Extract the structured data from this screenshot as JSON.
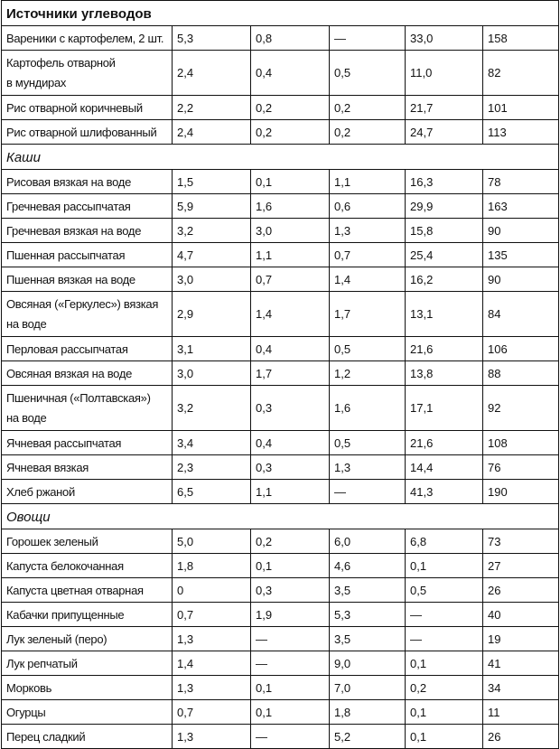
{
  "title": "Источники углеводов",
  "rows": [
    {
      "name": "Вареники с картофелем, 2 шт.",
      "c1": "5,3",
      "c2": "0,8",
      "c3": "—",
      "c4": "33,0",
      "c5": "158"
    },
    {
      "name": "Картофель отварной\nв мундирах",
      "c1": "2,4",
      "c2": "0,4",
      "c3": "0,5",
      "c4": "11,0",
      "c5": "82"
    },
    {
      "name": "Рис отварной коричневый",
      "c1": "2,2",
      "c2": "0,2",
      "c3": "0,2",
      "c4": "21,7",
      "c5": "101"
    },
    {
      "name": "Рис отварной шлифованный",
      "c1": "2,4",
      "c2": "0,2",
      "c3": "0,2",
      "c4": "24,7",
      "c5": "113"
    }
  ],
  "section_kashi": "Каши",
  "rows_kashi": [
    {
      "name": "Рисовая вязкая на воде",
      "c1": "1,5",
      "c2": "0,1",
      "c3": "1,1",
      "c4": "16,3",
      "c5": "78"
    },
    {
      "name": "Гречневая рассыпчатая",
      "c1": "5,9",
      "c2": "1,6",
      "c3": "0,6",
      "c4": "29,9",
      "c5": "163"
    },
    {
      "name": "Гречневая вязкая на воде",
      "c1": "3,2",
      "c2": "3,0",
      "c3": "1,3",
      "c4": "15,8",
      "c5": "90"
    },
    {
      "name": "Пшенная рассыпчатая",
      "c1": "4,7",
      "c2": "1,1",
      "c3": "0,7",
      "c4": "25,4",
      "c5": "135"
    },
    {
      "name": "Пшенная вязкая на воде",
      "c1": "3,0",
      "c2": "0,7",
      "c3": "1,4",
      "c4": "16,2",
      "c5": "90"
    },
    {
      "name": "Овсяная («Геркулес») вязкая\nна воде",
      "c1": "2,9",
      "c2": "1,4",
      "c3": "1,7",
      "c4": "13,1",
      "c5": "84"
    },
    {
      "name": "Перловая рассыпчатая",
      "c1": "3,1",
      "c2": "0,4",
      "c3": "0,5",
      "c4": "21,6",
      "c5": "106"
    },
    {
      "name": "Овсяная вязкая на воде",
      "c1": "3,0",
      "c2": "1,7",
      "c3": "1,2",
      "c4": "13,8",
      "c5": "88"
    },
    {
      "name": "Пшеничная («Полтавская»)\nна воде",
      "c1": "3,2",
      "c2": "0,3",
      "c3": "1,6",
      "c4": "17,1",
      "c5": "92"
    },
    {
      "name": "Ячневая рассыпчатая",
      "c1": "3,4",
      "c2": "0,4",
      "c3": "0,5",
      "c4": "21,6",
      "c5": "108"
    },
    {
      "name": "Ячневая вязкая",
      "c1": "2,3",
      "c2": "0,3",
      "c3": "1,3",
      "c4": "14,4",
      "c5": "76"
    },
    {
      "name": "Хлеб ржаной",
      "c1": "6,5",
      "c2": "1,1",
      "c3": "—",
      "c4": "41,3",
      "c5": "190"
    }
  ],
  "section_ovoshi": "Овощи",
  "rows_ovoshi": [
    {
      "name": "Горошек зеленый",
      "c1": "5,0",
      "c2": "0,2",
      "c3": "6,0",
      "c4": "6,8",
      "c5": "73"
    },
    {
      "name": "Капуста белокочанная",
      "c1": "1,8",
      "c2": "0,1",
      "c3": "4,6",
      "c4": "0,1",
      "c5": "27"
    },
    {
      "name": "Капуста цветная отварная",
      "c1": "0",
      "c2": "0,3",
      "c3": "3,5",
      "c4": "0,5",
      "c5": "26"
    },
    {
      "name": "Кабачки припущенные",
      "c1": "0,7",
      "c2": "1,9",
      "c3": "5,3",
      "c4": "—",
      "c5": "40"
    },
    {
      "name": "Лук зеленый (перо)",
      "c1": "1,3",
      "c2": "—",
      "c3": "3,5",
      "c4": "—",
      "c5": "19"
    },
    {
      "name": "Лук репчатый",
      "c1": "1,4",
      "c2": "—",
      "c3": "9,0",
      "c4": "0,1",
      "c5": "41"
    },
    {
      "name": "Морковь",
      "c1": "1,3",
      "c2": "0,1",
      "c3": "7,0",
      "c4": "0,2",
      "c5": "34"
    },
    {
      "name": "Огурцы",
      "c1": "0,7",
      "c2": "0,1",
      "c3": "1,8",
      "c4": "0,1",
      "c5": "11"
    },
    {
      "name": "Перец сладкий",
      "c1": "1,3",
      "c2": "—",
      "c3": "5,2",
      "c4": "0,1",
      "c5": "26"
    }
  ]
}
